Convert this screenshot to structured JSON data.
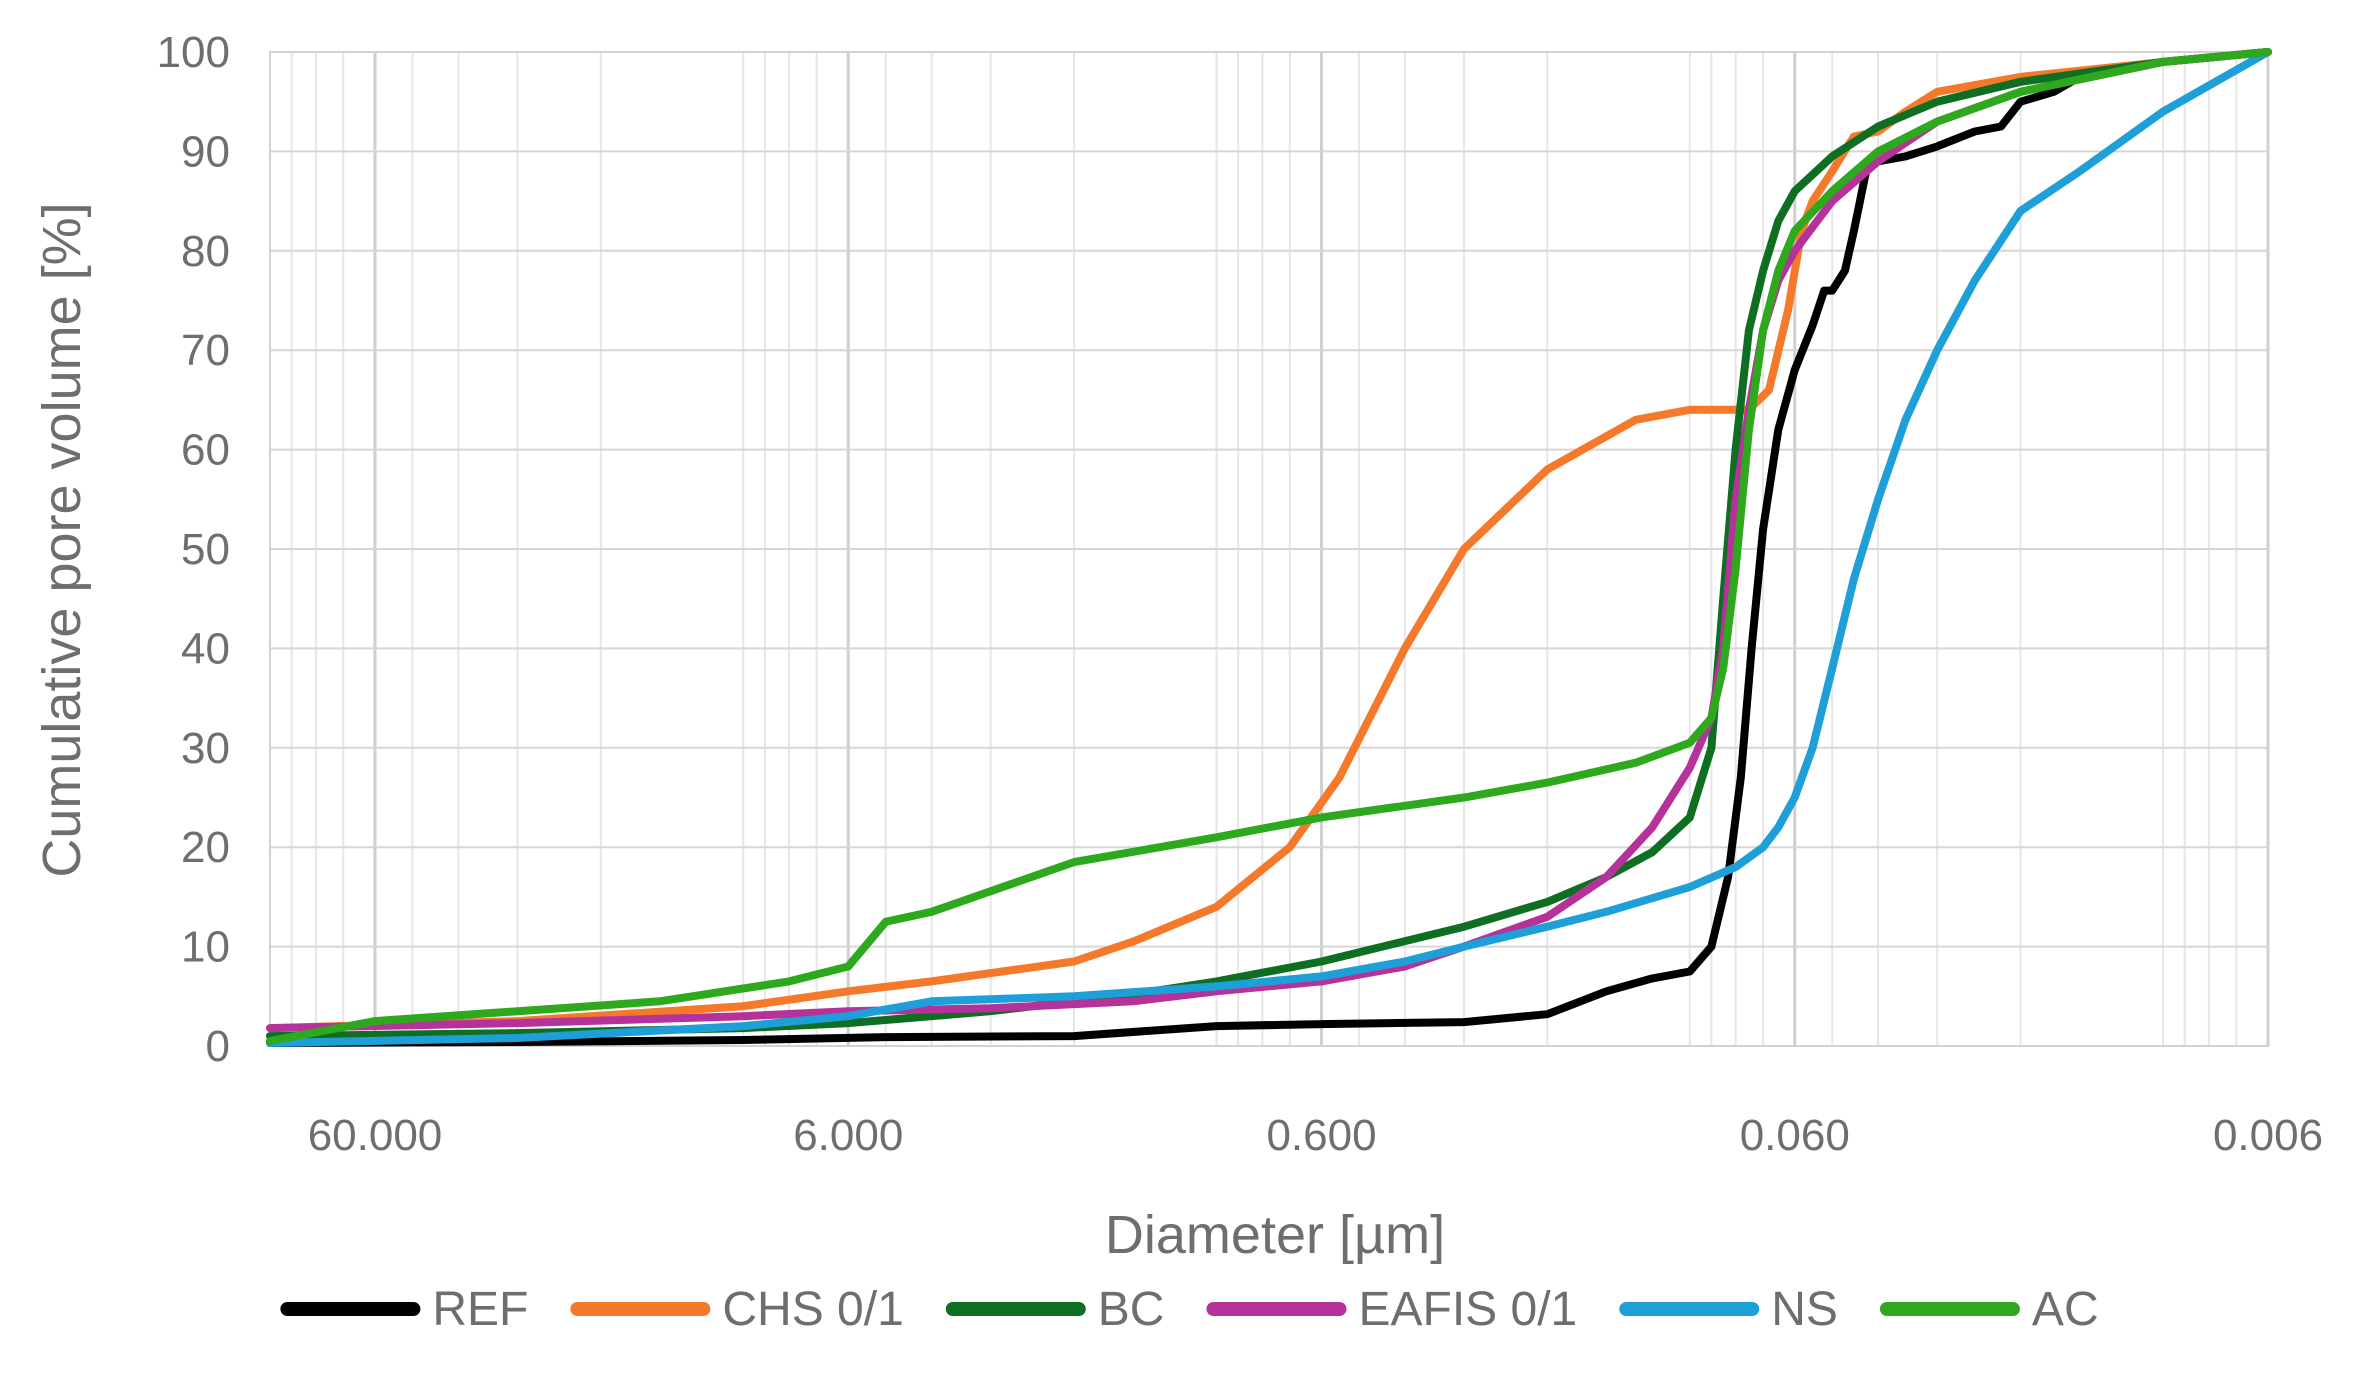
{
  "chart_data": {
    "type": "line",
    "xlabel": "Diameter [µm]",
    "ylabel": "Cumulative pore volume [%]",
    "x_scale": "log",
    "x_reversed": true,
    "xlim": [
      100,
      0.006
    ],
    "ylim": [
      0,
      100
    ],
    "grid": true,
    "legend_position": "bottom",
    "x_tick_values": [
      60,
      6,
      0.6,
      0.06,
      0.006
    ],
    "x_tick_labels": [
      "60.000",
      "6.000",
      "0.600",
      "0.060",
      "0.006"
    ],
    "y_ticks": [
      0,
      10,
      20,
      30,
      40,
      50,
      60,
      70,
      80,
      90,
      100
    ],
    "series": [
      {
        "name": "REF",
        "color": "#000000",
        "points": [
          [
            100,
            0.3
          ],
          [
            30,
            0.4
          ],
          [
            10,
            0.6
          ],
          [
            5,
            0.9
          ],
          [
            2,
            1.0
          ],
          [
            1,
            2.0
          ],
          [
            0.6,
            2.2
          ],
          [
            0.3,
            2.4
          ],
          [
            0.2,
            3.2
          ],
          [
            0.15,
            5.5
          ],
          [
            0.12,
            6.8
          ],
          [
            0.1,
            7.5
          ],
          [
            0.09,
            10
          ],
          [
            0.083,
            17
          ],
          [
            0.078,
            27
          ],
          [
            0.074,
            40
          ],
          [
            0.07,
            52
          ],
          [
            0.065,
            62
          ],
          [
            0.06,
            68
          ],
          [
            0.055,
            72.5
          ],
          [
            0.052,
            76
          ],
          [
            0.05,
            76
          ],
          [
            0.047,
            78
          ],
          [
            0.045,
            82
          ],
          [
            0.042,
            89
          ],
          [
            0.04,
            89
          ],
          [
            0.035,
            89.5
          ],
          [
            0.03,
            90.5
          ],
          [
            0.025,
            92
          ],
          [
            0.022,
            92.5
          ],
          [
            0.02,
            95
          ],
          [
            0.017,
            96
          ],
          [
            0.015,
            97.5
          ],
          [
            0.01,
            99
          ],
          [
            0.006,
            100
          ]
        ]
      },
      {
        "name": "CHS 0/1",
        "color": "#f5792a",
        "points": [
          [
            100,
            1.8
          ],
          [
            30,
            2.5
          ],
          [
            10,
            4.0
          ],
          [
            6,
            5.5
          ],
          [
            4,
            6.5
          ],
          [
            2,
            8.5
          ],
          [
            1.5,
            10.5
          ],
          [
            1,
            14
          ],
          [
            0.7,
            20
          ],
          [
            0.55,
            27
          ],
          [
            0.4,
            40
          ],
          [
            0.3,
            50
          ],
          [
            0.2,
            58
          ],
          [
            0.13,
            63
          ],
          [
            0.1,
            64
          ],
          [
            0.075,
            64
          ],
          [
            0.068,
            66
          ],
          [
            0.062,
            74
          ],
          [
            0.058,
            82
          ],
          [
            0.055,
            85
          ],
          [
            0.05,
            88
          ],
          [
            0.045,
            91.5
          ],
          [
            0.04,
            92
          ],
          [
            0.035,
            94
          ],
          [
            0.03,
            96
          ],
          [
            0.02,
            97.5
          ],
          [
            0.01,
            99
          ],
          [
            0.006,
            100
          ]
        ]
      },
      {
        "name": "BC",
        "color": "#0e6e22",
        "points": [
          [
            100,
            1.0
          ],
          [
            30,
            1.3
          ],
          [
            10,
            1.8
          ],
          [
            6,
            2.3
          ],
          [
            3,
            3.5
          ],
          [
            1.5,
            5.2
          ],
          [
            1,
            6.5
          ],
          [
            0.6,
            8.5
          ],
          [
            0.3,
            12
          ],
          [
            0.2,
            14.5
          ],
          [
            0.15,
            17
          ],
          [
            0.12,
            19.5
          ],
          [
            0.1,
            23
          ],
          [
            0.09,
            30
          ],
          [
            0.085,
            45
          ],
          [
            0.08,
            60
          ],
          [
            0.075,
            72
          ],
          [
            0.07,
            78
          ],
          [
            0.065,
            83
          ],
          [
            0.06,
            86
          ],
          [
            0.05,
            89.5
          ],
          [
            0.04,
            92.5
          ],
          [
            0.03,
            95
          ],
          [
            0.02,
            97
          ],
          [
            0.01,
            99
          ],
          [
            0.006,
            100
          ]
        ]
      },
      {
        "name": "EAFIS 0/1",
        "color": "#b5329b",
        "points": [
          [
            100,
            1.8
          ],
          [
            30,
            2.3
          ],
          [
            10,
            3.0
          ],
          [
            6,
            3.5
          ],
          [
            3,
            3.8
          ],
          [
            1.5,
            4.5
          ],
          [
            1,
            5.5
          ],
          [
            0.6,
            6.5
          ],
          [
            0.4,
            8
          ],
          [
            0.3,
            10
          ],
          [
            0.2,
            13
          ],
          [
            0.15,
            17
          ],
          [
            0.12,
            22
          ],
          [
            0.1,
            28
          ],
          [
            0.09,
            33
          ],
          [
            0.085,
            40
          ],
          [
            0.08,
            55
          ],
          [
            0.075,
            64
          ],
          [
            0.07,
            72
          ],
          [
            0.065,
            77
          ],
          [
            0.06,
            80
          ],
          [
            0.05,
            85
          ],
          [
            0.04,
            89
          ],
          [
            0.03,
            93
          ],
          [
            0.02,
            96
          ],
          [
            0.01,
            99
          ],
          [
            0.006,
            100
          ]
        ]
      },
      {
        "name": "NS",
        "color": "#1f9fd8",
        "points": [
          [
            100,
            0.3
          ],
          [
            30,
            0.8
          ],
          [
            10,
            2.0
          ],
          [
            6,
            3.0
          ],
          [
            4,
            4.5
          ],
          [
            2,
            5.0
          ],
          [
            1,
            6.0
          ],
          [
            0.6,
            7.0
          ],
          [
            0.4,
            8.5
          ],
          [
            0.3,
            10
          ],
          [
            0.2,
            12
          ],
          [
            0.15,
            13.5
          ],
          [
            0.1,
            16
          ],
          [
            0.08,
            18
          ],
          [
            0.07,
            20
          ],
          [
            0.065,
            22
          ],
          [
            0.06,
            25
          ],
          [
            0.055,
            30
          ],
          [
            0.05,
            38
          ],
          [
            0.045,
            47
          ],
          [
            0.04,
            55
          ],
          [
            0.035,
            63
          ],
          [
            0.03,
            70
          ],
          [
            0.025,
            77
          ],
          [
            0.02,
            84
          ],
          [
            0.015,
            88
          ],
          [
            0.01,
            94
          ],
          [
            0.006,
            100
          ]
        ]
      },
      {
        "name": "AC",
        "color": "#2ea81c",
        "points": [
          [
            100,
            0.5
          ],
          [
            60,
            2.5
          ],
          [
            30,
            3.5
          ],
          [
            15,
            4.5
          ],
          [
            8,
            6.5
          ],
          [
            6,
            8.0
          ],
          [
            5,
            12.5
          ],
          [
            4,
            13.5
          ],
          [
            2,
            18.5
          ],
          [
            1,
            21
          ],
          [
            0.6,
            23
          ],
          [
            0.3,
            25
          ],
          [
            0.2,
            26.5
          ],
          [
            0.13,
            28.5
          ],
          [
            0.1,
            30.5
          ],
          [
            0.09,
            33
          ],
          [
            0.085,
            38
          ],
          [
            0.08,
            48
          ],
          [
            0.075,
            62
          ],
          [
            0.07,
            72
          ],
          [
            0.065,
            78
          ],
          [
            0.06,
            82
          ],
          [
            0.05,
            86
          ],
          [
            0.04,
            90
          ],
          [
            0.03,
            93
          ],
          [
            0.02,
            96
          ],
          [
            0.01,
            99
          ],
          [
            0.006,
            100
          ]
        ]
      }
    ]
  }
}
